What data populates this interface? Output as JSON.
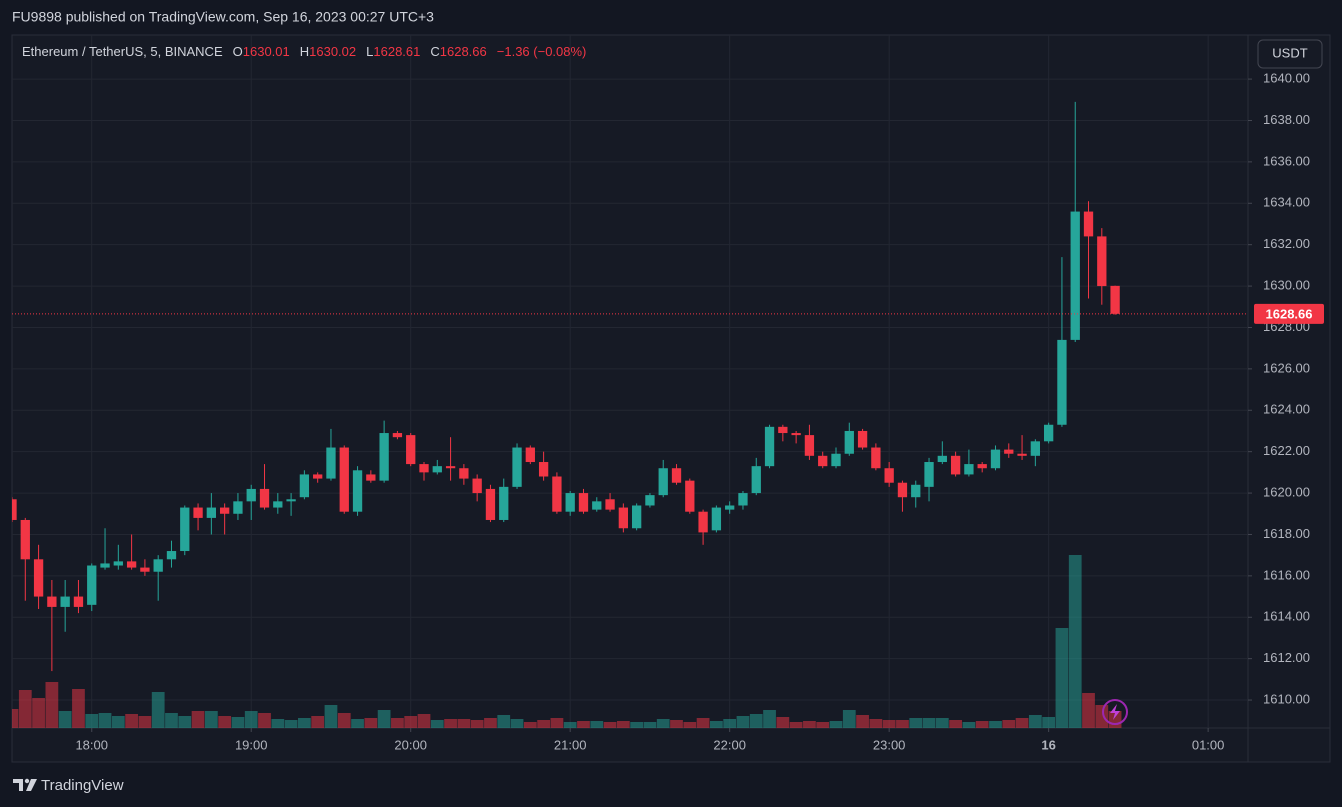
{
  "header": {
    "title": "FU9898 published on TradingView.com, Sep 16, 2023 00:27 UTC+3"
  },
  "chart_data": {
    "type": "candlestick",
    "symbol": "Ethereum / TetherUS, 5, BINANCE",
    "legend": {
      "o_label": "O",
      "open": 1630.01,
      "h_label": "H",
      "high": 1630.02,
      "l_label": "L",
      "low": 1628.61,
      "c_label": "C",
      "close": 1628.66,
      "change": "−1.36 (−0.08%)"
    },
    "currency": "USDT",
    "last_price": 1628.66,
    "up_color": "#26a69a",
    "down_color": "#f23645",
    "open": [
      1619.7,
      1618.7,
      1616.8,
      1615.0,
      1614.5,
      1615.0,
      1614.6,
      1616.4,
      1616.5,
      1616.7,
      1616.4,
      1616.2,
      1616.8,
      1617.2,
      1619.3,
      1618.8,
      1619.3,
      1619.0,
      1619.6,
      1620.2,
      1619.3,
      1619.6,
      1619.8,
      1620.9,
      1620.7,
      1622.2,
      1619.1,
      1620.9,
      1620.6,
      1622.9,
      1622.8,
      1621.4,
      1621.0,
      1621.3,
      1621.2,
      1620.7,
      1620.2,
      1618.7,
      1620.3,
      1622.2,
      1621.5,
      1620.8,
      1619.1,
      1620.0,
      1619.2,
      1619.7,
      1619.3,
      1618.3,
      1619.4,
      1619.9,
      1621.2,
      1620.6,
      1619.1,
      1618.2,
      1619.2,
      1619.4,
      1620.0,
      1621.3,
      1623.2,
      1622.9,
      1622.8,
      1621.8,
      1621.3,
      1621.9,
      1623.0,
      1622.2,
      1621.2,
      1620.5,
      1619.8,
      1620.3,
      1621.5,
      1621.8,
      1620.9,
      1621.4,
      1621.2,
      1622.1,
      1621.9,
      1621.8,
      1622.5,
      1623.3,
      1627.4,
      1633.6,
      1632.4,
      1630.01
    ],
    "high": [
      1619.8,
      1618.8,
      1617.5,
      1615.8,
      1615.8,
      1615.8,
      1616.6,
      1618.3,
      1617.5,
      1618.0,
      1616.8,
      1617.0,
      1617.7,
      1619.4,
      1619.5,
      1620.0,
      1619.5,
      1620.0,
      1620.4,
      1621.4,
      1620.0,
      1620.0,
      1621.1,
      1621.0,
      1623.1,
      1622.3,
      1621.3,
      1621.1,
      1623.5,
      1623.0,
      1622.9,
      1621.5,
      1621.6,
      1622.7,
      1621.4,
      1620.9,
      1620.4,
      1620.7,
      1622.4,
      1622.3,
      1622.0,
      1621.0,
      1620.1,
      1620.2,
      1619.8,
      1620.0,
      1619.5,
      1619.5,
      1620.0,
      1621.6,
      1621.4,
      1620.7,
      1619.2,
      1619.4,
      1619.6,
      1620.1,
      1621.7,
      1623.3,
      1623.3,
      1623.0,
      1623.3,
      1622.0,
      1622.2,
      1623.4,
      1623.1,
      1622.4,
      1621.5,
      1620.6,
      1620.6,
      1621.7,
      1622.5,
      1622.0,
      1622.1,
      1621.5,
      1622.3,
      1622.4,
      1622.8,
      1622.6,
      1623.4,
      1631.4,
      1638.9,
      1634.1,
      1632.8,
      1630.02
    ],
    "low": [
      1618.6,
      1614.8,
      1614.4,
      1611.4,
      1613.3,
      1614.2,
      1614.3,
      1616.3,
      1616.3,
      1616.3,
      1616.0,
      1614.8,
      1616.4,
      1617.0,
      1618.2,
      1618.0,
      1618.0,
      1618.7,
      1618.7,
      1619.2,
      1619.0,
      1618.9,
      1619.7,
      1620.5,
      1620.6,
      1619.0,
      1618.9,
      1620.5,
      1620.5,
      1622.6,
      1621.3,
      1620.6,
      1620.9,
      1620.6,
      1620.4,
      1619.6,
      1618.6,
      1618.6,
      1620.2,
      1621.4,
      1620.6,
      1619.0,
      1618.9,
      1619.0,
      1619.1,
      1619.1,
      1618.1,
      1618.2,
      1619.3,
      1619.8,
      1620.4,
      1619.0,
      1617.5,
      1618.1,
      1619.0,
      1619.2,
      1619.9,
      1621.2,
      1622.5,
      1622.4,
      1621.6,
      1621.2,
      1621.2,
      1621.8,
      1622.1,
      1621.1,
      1620.3,
      1619.1,
      1619.3,
      1619.6,
      1621.4,
      1620.8,
      1620.8,
      1621.0,
      1621.1,
      1621.7,
      1621.6,
      1621.3,
      1622.4,
      1623.2,
      1627.3,
      1629.4,
      1629.1,
      1628.61
    ],
    "close": [
      1618.7,
      1616.8,
      1615.0,
      1614.5,
      1615.0,
      1614.5,
      1616.5,
      1616.6,
      1616.7,
      1616.4,
      1616.2,
      1616.8,
      1617.2,
      1619.3,
      1618.8,
      1619.3,
      1619.0,
      1619.6,
      1620.2,
      1619.3,
      1619.6,
      1619.7,
      1620.9,
      1620.7,
      1622.2,
      1619.1,
      1621.1,
      1620.6,
      1622.9,
      1622.7,
      1621.4,
      1621.0,
      1621.3,
      1621.2,
      1620.7,
      1620.0,
      1618.7,
      1620.3,
      1622.2,
      1621.5,
      1620.8,
      1619.1,
      1620.0,
      1619.1,
      1619.6,
      1619.2,
      1618.3,
      1619.4,
      1619.9,
      1621.2,
      1620.5,
      1619.1,
      1618.1,
      1619.3,
      1619.4,
      1620.0,
      1621.3,
      1623.2,
      1622.9,
      1622.8,
      1621.8,
      1621.3,
      1621.9,
      1623.0,
      1622.2,
      1621.2,
      1620.5,
      1619.8,
      1620.4,
      1621.5,
      1621.8,
      1620.9,
      1621.4,
      1621.2,
      1622.1,
      1621.9,
      1621.8,
      1622.5,
      1623.3,
      1627.4,
      1633.6,
      1632.4,
      1630.0,
      1628.66
    ],
    "volume": [
      19,
      38,
      30,
      46,
      17,
      39,
      14,
      15,
      12,
      14,
      12,
      36,
      15,
      12,
      17,
      17,
      12,
      11,
      17,
      15,
      9,
      8,
      10,
      12,
      23,
      15,
      9,
      10,
      18,
      10,
      12,
      14,
      8,
      9,
      9,
      8,
      10,
      13,
      9,
      6,
      8,
      10,
      6,
      7,
      7,
      6,
      7,
      6,
      6,
      9,
      8,
      6,
      10,
      7,
      9,
      12,
      14,
      18,
      11,
      6,
      7,
      6,
      7,
      18,
      13,
      9,
      8,
      8,
      10,
      10,
      10,
      8,
      6,
      7,
      7,
      8,
      10,
      13,
      11,
      100,
      173,
      35,
      23,
      17
    ],
    "ylim": [
      1608.65,
      1642.13
    ],
    "yticks": [
      {
        "value": 1610,
        "label": "1610.00"
      },
      {
        "value": 1612,
        "label": "1612.00"
      },
      {
        "value": 1614,
        "label": "1614.00"
      },
      {
        "value": 1616,
        "label": "1616.00"
      },
      {
        "value": 1618,
        "label": "1618.00"
      },
      {
        "value": 1620,
        "label": "1620.00"
      },
      {
        "value": 1622,
        "label": "1622.00"
      },
      {
        "value": 1624,
        "label": "1624.00"
      },
      {
        "value": 1626,
        "label": "1626.00"
      },
      {
        "value": 1628,
        "label": "1628.00"
      },
      {
        "value": 1630,
        "label": "1630.00"
      },
      {
        "value": 1632,
        "label": "1632.00"
      },
      {
        "value": 1634,
        "label": "1634.00"
      },
      {
        "value": 1636,
        "label": "1636.00"
      },
      {
        "value": 1638,
        "label": "1638.00"
      },
      {
        "value": 1640,
        "label": "1640.00"
      }
    ],
    "xlim": [
      0,
      93
    ],
    "xticks": [
      {
        "value": 6,
        "label": "18:00"
      },
      {
        "value": 18,
        "label": "19:00"
      },
      {
        "value": 30,
        "label": "20:00"
      },
      {
        "value": 42,
        "label": "21:00"
      },
      {
        "value": 54,
        "label": "22:00"
      },
      {
        "value": 66,
        "label": "23:00"
      },
      {
        "value": 78,
        "label": "16"
      },
      {
        "value": 90,
        "label": "01:00"
      }
    ],
    "grid": true
  },
  "footer": {
    "brand": "TradingView"
  }
}
